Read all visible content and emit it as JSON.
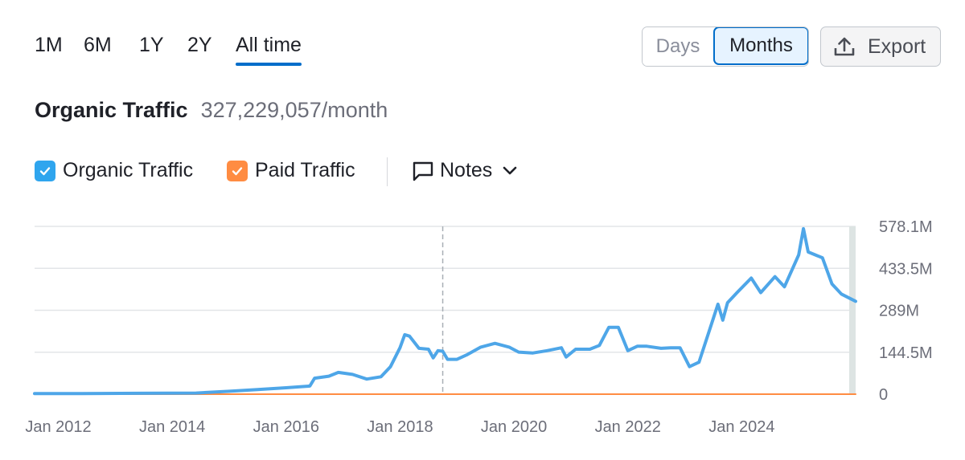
{
  "period_tabs": [
    "1M",
    "6M",
    "1Y",
    "2Y",
    "All time"
  ],
  "active_tab": "All time",
  "granularity": {
    "days": "Days",
    "months": "Months",
    "selected": "Months"
  },
  "export_label": "Export",
  "header": {
    "title": "Organic Traffic",
    "value": "327,229,057/month"
  },
  "legend": {
    "organic": "Organic Traffic",
    "paid": "Paid Traffic",
    "notes": "Notes"
  },
  "colors": {
    "organic": "#4ea6e8",
    "paid": "#ff8c42",
    "accent": "#006dca",
    "grid": "#e3e5e8"
  },
  "icons": {
    "export": "upload-icon",
    "notes": "comment-icon",
    "dropdown": "chevron-down-icon",
    "checkbox": "check-icon"
  },
  "chart_data": {
    "type": "line",
    "title": "",
    "xlabel": "",
    "ylabel": "",
    "x_ticks": [
      "Jan 2012",
      "Jan 2014",
      "Jan 2016",
      "Jan 2018",
      "Jan 2020",
      "Jan 2022",
      "Jan 2024"
    ],
    "y_ticks": [
      "0",
      "144.5M",
      "289M",
      "433.5M",
      "578.1M"
    ],
    "ylim": [
      0,
      578.1
    ],
    "y_unit": "M",
    "y_axis_position": "right",
    "grid": true,
    "marker_date": "2018-10",
    "series": [
      {
        "name": "Organic Traffic",
        "color": "#4ea6e8",
        "points": [
          [
            "2011-08",
            2
          ],
          [
            "2012-06",
            2
          ],
          [
            "2013-06",
            3
          ],
          [
            "2014-06",
            4
          ],
          [
            "2015-01",
            10
          ],
          [
            "2015-07",
            16
          ],
          [
            "2016-01",
            22
          ],
          [
            "2016-06",
            28
          ],
          [
            "2016-07",
            55
          ],
          [
            "2016-10",
            62
          ],
          [
            "2016-12",
            75
          ],
          [
            "2017-03",
            68
          ],
          [
            "2017-06",
            52
          ],
          [
            "2017-09",
            60
          ],
          [
            "2017-11",
            95
          ],
          [
            "2018-01",
            160
          ],
          [
            "2018-02",
            205
          ],
          [
            "2018-03",
            200
          ],
          [
            "2018-05",
            158
          ],
          [
            "2018-07",
            155
          ],
          [
            "2018-08",
            125
          ],
          [
            "2018-09",
            150
          ],
          [
            "2018-10",
            148
          ],
          [
            "2018-11",
            120
          ],
          [
            "2019-01",
            120
          ],
          [
            "2019-03",
            135
          ],
          [
            "2019-06",
            162
          ],
          [
            "2019-09",
            175
          ],
          [
            "2019-12",
            162
          ],
          [
            "2020-02",
            145
          ],
          [
            "2020-05",
            142
          ],
          [
            "2020-08",
            150
          ],
          [
            "2020-11",
            160
          ],
          [
            "2020-12",
            128
          ],
          [
            "2021-02",
            155
          ],
          [
            "2021-05",
            155
          ],
          [
            "2021-07",
            168
          ],
          [
            "2021-09",
            230
          ],
          [
            "2021-11",
            230
          ],
          [
            "2022-01",
            150
          ],
          [
            "2022-03",
            165
          ],
          [
            "2022-05",
            165
          ],
          [
            "2022-08",
            158
          ],
          [
            "2022-10",
            160
          ],
          [
            "2022-12",
            160
          ],
          [
            "2023-02",
            95
          ],
          [
            "2023-04",
            110
          ],
          [
            "2023-06",
            210
          ],
          [
            "2023-08",
            310
          ],
          [
            "2023-09",
            255
          ],
          [
            "2023-10",
            315
          ],
          [
            "2023-12",
            350
          ],
          [
            "2024-03",
            400
          ],
          [
            "2024-05",
            350
          ],
          [
            "2024-08",
            405
          ],
          [
            "2024-10",
            370
          ],
          [
            "2025-01",
            480
          ],
          [
            "2025-02",
            570
          ],
          [
            "2025-03",
            490
          ],
          [
            "2025-06",
            470
          ],
          [
            "2025-08",
            380
          ],
          [
            "2025-10",
            345
          ],
          [
            "2026-01",
            320
          ]
        ]
      },
      {
        "name": "Paid Traffic",
        "color": "#ff8c42",
        "points": [
          [
            "2011-08",
            0
          ],
          [
            "2026-01",
            0
          ]
        ]
      }
    ]
  }
}
